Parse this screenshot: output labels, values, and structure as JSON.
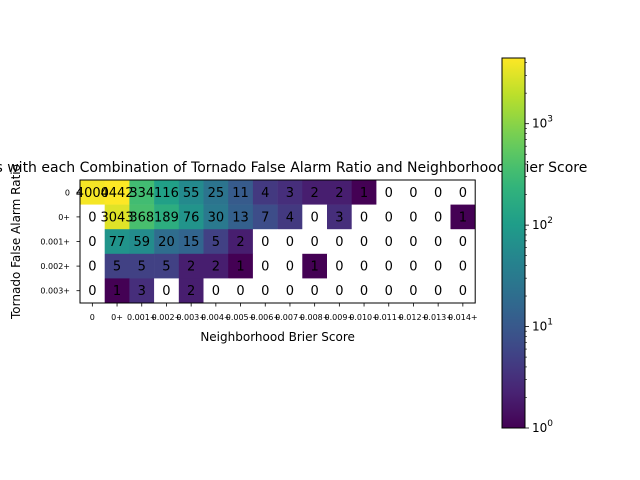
{
  "chart_data": {
    "type": "heatmap",
    "title": "Days with each Combination of Tornado False Alarm Ratio and Neighborhood Brier Score",
    "xlabel": "Neighborhood Brier Score",
    "ylabel": "Tornado False Alarm Ratio",
    "x_tick_labels": [
      "0",
      "0+",
      "0.001+",
      "0.002+",
      "0.003+",
      "0.004+",
      "0.005+",
      "0.006+",
      "0.007+",
      "0.008+",
      "0.009+",
      "0.010+",
      "0.011+",
      "0.012+",
      "0.013+",
      "0.014+"
    ],
    "y_tick_labels": [
      "0",
      "0+",
      "0.001+",
      "0.002+",
      "0.003+"
    ],
    "values": [
      [
        4000,
        4442,
        334,
        116,
        55,
        25,
        11,
        4,
        3,
        2,
        2,
        1,
        0,
        0,
        0,
        0
      ],
      [
        0,
        3043,
        368,
        189,
        76,
        30,
        13,
        7,
        4,
        0,
        3,
        0,
        0,
        0,
        0,
        1
      ],
      [
        0,
        77,
        59,
        20,
        15,
        5,
        2,
        0,
        0,
        0,
        0,
        0,
        0,
        0,
        0,
        0
      ],
      [
        0,
        5,
        5,
        5,
        2,
        2,
        1,
        0,
        0,
        1,
        0,
        0,
        0,
        0,
        0,
        0
      ],
      [
        0,
        1,
        3,
        0,
        2,
        0,
        0,
        0,
        0,
        0,
        0,
        0,
        0,
        0,
        0,
        0
      ]
    ],
    "colorbar": {
      "scale": "log",
      "min": 1,
      "max": 4442,
      "colormap": "viridis",
      "tick_labels": [
        "10^0",
        "10^1",
        "10^2",
        "10^3"
      ],
      "tick_values": [
        1,
        10,
        100,
        1000
      ]
    },
    "zero_color": "#ffffff",
    "legend": "colorbar on right",
    "grid": false
  }
}
